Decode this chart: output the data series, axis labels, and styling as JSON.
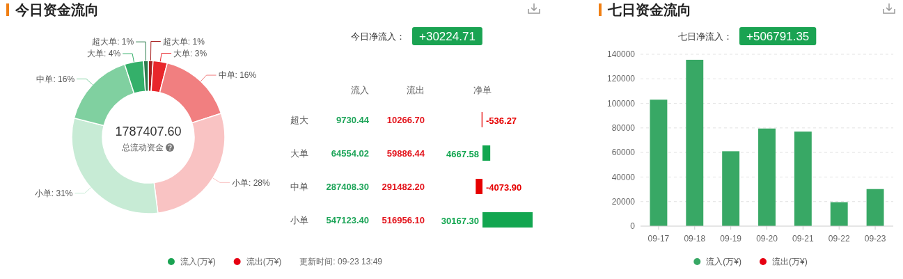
{
  "chart_data": [
    {
      "type": "donut",
      "title": "今日资金流向",
      "categories": [
        "超大单",
        "大单",
        "中单",
        "小单",
        "小单",
        "中单",
        "大单",
        "超大单"
      ],
      "values": [
        1,
        3,
        16,
        28,
        31,
        16,
        4,
        1
      ],
      "colors": [
        "#a82020",
        "#e8262b",
        "#f17f80",
        "#f9c3c3",
        "#c7ebd5",
        "#80d0a0",
        "#34b06a",
        "#2b7d4d"
      ],
      "value_labels": [
        "1%",
        "3%",
        "16%",
        "28%",
        "31%",
        "16%",
        "4%",
        "1%"
      ],
      "annotations": [
        "1787407.60",
        "总流动资金",
        "流入(万¥)",
        "流出(万¥)",
        "更新时间: 09-23 13:49"
      ]
    },
    {
      "type": "other",
      "annotations": [
        "流入",
        "流出",
        "9730.44",
        "10266.70",
        "64554.02",
        "59886.44",
        "287408.30",
        "291482.20",
        "547123.40",
        "516956.10"
      ]
    },
    {
      "type": "bar",
      "orientation": "horizontal",
      "subtitle": "今日净流入：",
      "annotations": [
        "+30224.71"
      ],
      "categories": [
        "超大",
        "大单",
        "中单",
        "小单"
      ],
      "series": [
        {
          "name": "净单",
          "values": [
            -536.27,
            4667.58,
            -4073.9,
            30167.3
          ],
          "colors": [
            "#e60000",
            "#12a650",
            "#e60000",
            "#12a650"
          ],
          "value_labels": [
            "-536.27",
            "4667.58",
            "-4073.90",
            "30167.30"
          ]
        }
      ]
    },
    {
      "type": "bar",
      "title": "七日资金流向",
      "subtitle": "七日净流入：",
      "annotations": [
        "+506791.35"
      ],
      "categories": [
        "09-17",
        "09-18",
        "09-19",
        "09-20",
        "09-21",
        "09-22",
        "09-23"
      ],
      "stacked": true,
      "series": [
        {
          "name": "流入(万¥)",
          "color": "#38a865",
          "values": [
            103000,
            135500,
            61000,
            79500,
            77000,
            19500,
            30200
          ]
        },
        {
          "name": "流出(万¥)",
          "color": "#e60012",
          "values": [
            null,
            null,
            null,
            null,
            null,
            null,
            null
          ]
        }
      ],
      "ylim": [
        0,
        140000
      ],
      "yticks": [
        0,
        20000,
        40000,
        60000,
        80000,
        100000,
        120000,
        140000
      ],
      "grid": "y",
      "legend": "bottom"
    }
  ]
}
